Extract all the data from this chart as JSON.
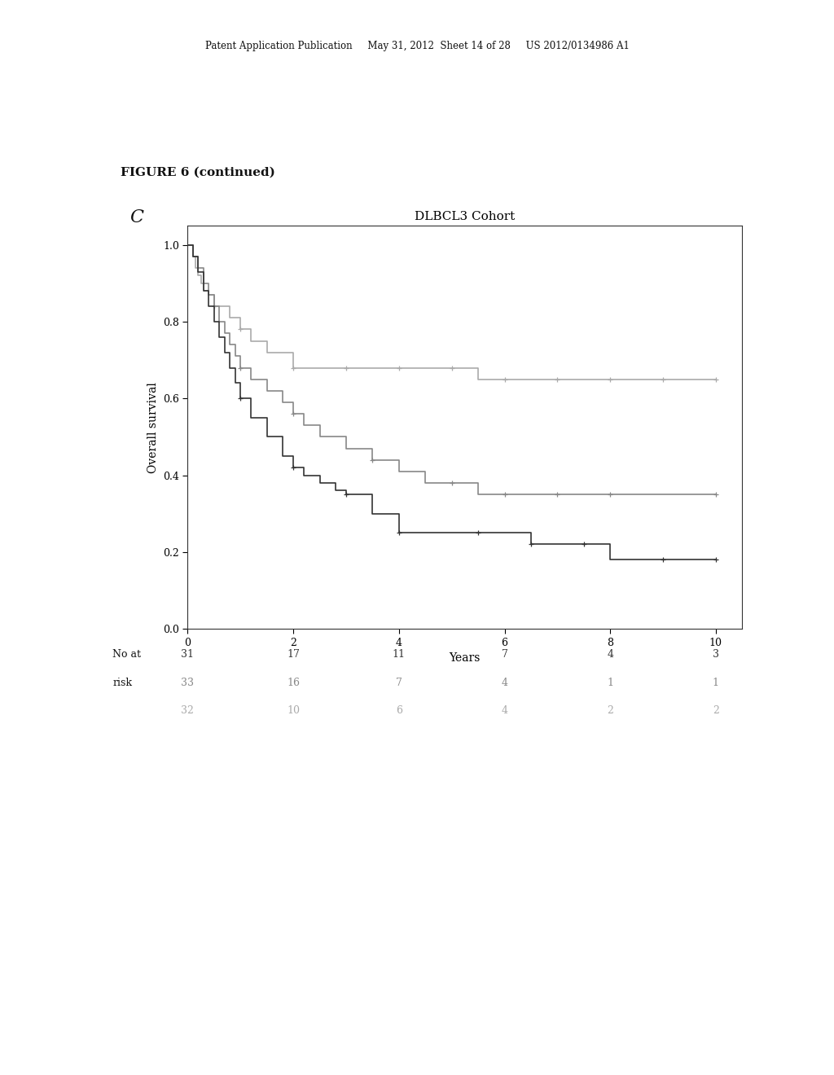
{
  "title": "DLBCL3 Cohort",
  "xlabel": "Years",
  "ylabel": "Overall survival",
  "figure_label": "C",
  "figure_title": "FIGURE 6 (continued)",
  "patent_header": "Patent Application Publication     May 31, 2012  Sheet 14 of 28     US 2012/0134986 A1",
  "ylim": [
    0.0,
    1.05
  ],
  "xlim": [
    0,
    10.5
  ],
  "yticks": [
    0.0,
    0.2,
    0.4,
    0.6,
    0.8,
    1.0
  ],
  "xticks": [
    0,
    2,
    4,
    6,
    8,
    10
  ],
  "curves": [
    {
      "color": "#aaaaaa",
      "linewidth": 1.2,
      "x": [
        0,
        0.1,
        0.15,
        0.2,
        0.25,
        0.3,
        0.4,
        0.5,
        0.6,
        0.7,
        0.8,
        0.9,
        1.0,
        1.1,
        1.2,
        1.5,
        1.7,
        2.0,
        2.5,
        3.0,
        3.5,
        4.0,
        4.5,
        5.0,
        5.5,
        6.0,
        6.5,
        7.0,
        7.5,
        8.0,
        8.5,
        9.0,
        9.5,
        10.0
      ],
      "y": [
        1.0,
        0.97,
        0.94,
        0.92,
        0.9,
        0.88,
        0.87,
        0.84,
        0.84,
        0.84,
        0.81,
        0.81,
        0.78,
        0.78,
        0.75,
        0.72,
        0.72,
        0.68,
        0.68,
        0.68,
        0.68,
        0.68,
        0.68,
        0.68,
        0.65,
        0.65,
        0.65,
        0.65,
        0.65,
        0.65,
        0.65,
        0.65,
        0.65,
        0.65
      ],
      "censors_x": [
        0.5,
        1.0,
        2.0,
        3.0,
        4.0,
        5.0,
        6.0,
        7.0,
        8.0,
        9.0,
        10.0
      ],
      "censors_y": [
        0.84,
        0.78,
        0.68,
        0.68,
        0.68,
        0.68,
        0.65,
        0.65,
        0.65,
        0.65,
        0.65
      ]
    },
    {
      "color": "#888888",
      "linewidth": 1.2,
      "x": [
        0,
        0.1,
        0.2,
        0.3,
        0.4,
        0.5,
        0.6,
        0.7,
        0.8,
        0.9,
        1.0,
        1.2,
        1.5,
        1.8,
        2.0,
        2.2,
        2.5,
        3.0,
        3.5,
        4.0,
        4.5,
        5.0,
        5.5,
        6.0,
        6.5,
        7.0,
        7.5,
        8.0,
        9.0,
        10.0
      ],
      "y": [
        1.0,
        0.97,
        0.94,
        0.9,
        0.87,
        0.84,
        0.8,
        0.77,
        0.74,
        0.71,
        0.68,
        0.65,
        0.62,
        0.59,
        0.56,
        0.53,
        0.5,
        0.47,
        0.44,
        0.41,
        0.38,
        0.38,
        0.35,
        0.35,
        0.35,
        0.35,
        0.35,
        0.35,
        0.35,
        0.35
      ],
      "censors_x": [
        1.0,
        2.0,
        3.5,
        5.0,
        6.0,
        7.0,
        8.0,
        10.0
      ],
      "censors_y": [
        0.68,
        0.56,
        0.44,
        0.38,
        0.35,
        0.35,
        0.35,
        0.35
      ]
    },
    {
      "color": "#333333",
      "linewidth": 1.2,
      "x": [
        0,
        0.1,
        0.2,
        0.3,
        0.4,
        0.5,
        0.6,
        0.7,
        0.8,
        0.9,
        1.0,
        1.2,
        1.5,
        1.8,
        2.0,
        2.2,
        2.5,
        2.8,
        3.0,
        3.5,
        4.0,
        4.5,
        5.0,
        5.5,
        6.0,
        6.5,
        7.0,
        7.5,
        8.0,
        8.5,
        9.0,
        9.5,
        10.0
      ],
      "y": [
        1.0,
        0.97,
        0.93,
        0.88,
        0.84,
        0.8,
        0.76,
        0.72,
        0.68,
        0.64,
        0.6,
        0.55,
        0.5,
        0.45,
        0.42,
        0.4,
        0.38,
        0.36,
        0.35,
        0.3,
        0.25,
        0.25,
        0.25,
        0.25,
        0.25,
        0.22,
        0.22,
        0.22,
        0.18,
        0.18,
        0.18,
        0.18,
        0.18
      ],
      "censors_x": [
        1.0,
        2.0,
        3.0,
        4.0,
        5.5,
        6.5,
        7.5,
        9.0,
        10.0
      ],
      "censors_y": [
        0.6,
        0.42,
        0.35,
        0.25,
        0.25,
        0.22,
        0.22,
        0.18,
        0.18
      ]
    }
  ],
  "risk_table": {
    "label1": "No at",
    "label2": "risk",
    "row1_color": "#333333",
    "row2_color": "#888888",
    "row3_color": "#aaaaaa",
    "row1": [
      "31",
      "17",
      "11",
      "7",
      "4",
      "3"
    ],
    "row2": [
      "33",
      "16",
      "7",
      "4",
      "1",
      "1"
    ],
    "row3": [
      "32",
      "10",
      "6",
      "4",
      "2",
      "2"
    ]
  },
  "background_color": "#ffffff"
}
